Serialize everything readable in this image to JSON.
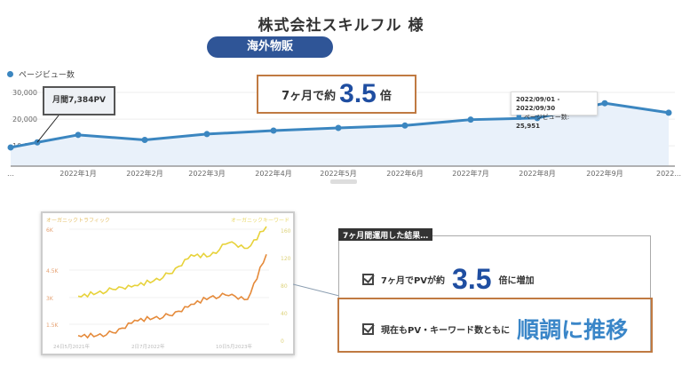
{
  "header": {
    "title": "株式会社スキルフル 様",
    "category": "海外物販"
  },
  "main_chart": {
    "legend": "ページビュー数",
    "series_color": "#3b86c0",
    "callout": "月間7,384PV",
    "highlight": {
      "prefix": "7ヶ月で約",
      "value": "3.5",
      "suffix": "倍"
    },
    "tooltip": {
      "range": "2022/09/01 - 2022/09/30",
      "label": "ページビュー数:",
      "value": "25,951"
    },
    "ellipsis": "…"
  },
  "chart_data": [
    {
      "type": "area",
      "title": "ページビュー数",
      "ylim": [
        2400,
        33000
      ],
      "yticks": [
        "30,000",
        "20,000",
        "10,000"
      ],
      "ytick_values": [
        30000,
        20000,
        10000
      ],
      "x": [
        "",
        "",
        "2022年1月",
        "2022年2月",
        "2022年3月",
        "2022年4月",
        "2022年5月",
        "2022年6月",
        "2022年7月",
        "2022年8月",
        "2022年9月",
        "2022..."
      ],
      "values": [
        9400,
        11300,
        14100,
        12200,
        14400,
        15700,
        16700,
        17600,
        19800,
        20400,
        25951,
        22400
      ]
    },
    {
      "type": "line",
      "title": "オーガニックトラフィック",
      "right_title": "オーガニックキーワード",
      "yticks_left": [
        "6K",
        "4.5K",
        "3K",
        "1.5K"
      ],
      "yticks_right": [
        "160",
        "120",
        "80",
        "40",
        "0"
      ],
      "xlabels": [
        "24日5月2021年",
        "2日7月2022年",
        "10日5月2023年"
      ],
      "series": [
        {
          "name": "オーガニックトラフィック",
          "color": "#e7d23a",
          "values": [
            2800,
            2950,
            3150,
            3300,
            3500,
            3900,
            4700,
            4650,
            5300,
            5000,
            6000
          ]
        },
        {
          "name": "オーガニックキーワード",
          "color": "#e58a3a",
          "values": [
            3,
            3,
            8,
            25,
            28,
            33,
            48,
            58,
            62,
            55,
            120
          ]
        }
      ]
    }
  ],
  "results": {
    "tag": "7ヶ月間運用した結果…",
    "row1": {
      "prefix": "7ヶ月でPVが約",
      "value": "3.5",
      "suffix": "倍に増加"
    },
    "row2": {
      "prefix": "現在もPV・キーワード数ともに",
      "emphasis": "順調に推移"
    }
  }
}
